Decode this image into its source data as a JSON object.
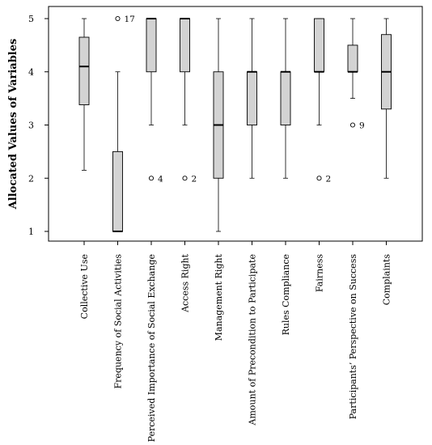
{
  "chart_data": {
    "type": "boxplot",
    "ylabel": "Allocated Values of Variables",
    "ylim": [
      0.8,
      5.2
    ],
    "yticks": [
      1,
      2,
      3,
      4,
      5
    ],
    "grid": false,
    "categories": [
      "Collective Use",
      "Frequency of Social Activities",
      "Perceived Importance of Social Exchange",
      "Access Right",
      "Management Right",
      "Amount of Precondition to Participate",
      "Rules Compliance",
      "Fairness",
      "Participants’ Perspective on Success",
      "Complaints"
    ],
    "boxes": [
      {
        "whisker_low": 2.15,
        "q1": 3.38,
        "median": 4.1,
        "q3": 4.65,
        "whisker_high": 5,
        "outliers": []
      },
      {
        "whisker_low": 1,
        "q1": 1,
        "median": 1,
        "q3": 2.5,
        "whisker_high": 4,
        "outliers": [
          {
            "value": 5,
            "label": "17"
          }
        ]
      },
      {
        "whisker_low": 3,
        "q1": 4,
        "median": 5,
        "q3": 5,
        "whisker_high": 5,
        "outliers": [
          {
            "value": 2,
            "label": "4"
          }
        ]
      },
      {
        "whisker_low": 3,
        "q1": 4,
        "median": 5,
        "q3": 5,
        "whisker_high": 5,
        "outliers": [
          {
            "value": 2,
            "label": "2"
          }
        ]
      },
      {
        "whisker_low": 1,
        "q1": 2,
        "median": 3,
        "q3": 4,
        "whisker_high": 5,
        "outliers": []
      },
      {
        "whisker_low": 2,
        "q1": 3,
        "median": 4,
        "q3": 4,
        "whisker_high": 5,
        "outliers": []
      },
      {
        "whisker_low": 2,
        "q1": 3,
        "median": 4,
        "q3": 4,
        "whisker_high": 5,
        "outliers": []
      },
      {
        "whisker_low": 3,
        "q1": 4,
        "median": 4,
        "q3": 5,
        "whisker_high": 5,
        "outliers": [
          {
            "value": 2,
            "label": "2"
          }
        ]
      },
      {
        "whisker_low": 3.5,
        "q1": 4,
        "median": 4,
        "q3": 4.5,
        "whisker_high": 5,
        "outliers": [
          {
            "value": 3,
            "label": "9"
          }
        ]
      },
      {
        "whisker_low": 2,
        "q1": 3.3,
        "median": 4,
        "q3": 4.7,
        "whisker_high": 5,
        "outliers": []
      }
    ],
    "colors": {
      "box_fill": "#d3d3d3",
      "stroke": "#000000"
    }
  }
}
